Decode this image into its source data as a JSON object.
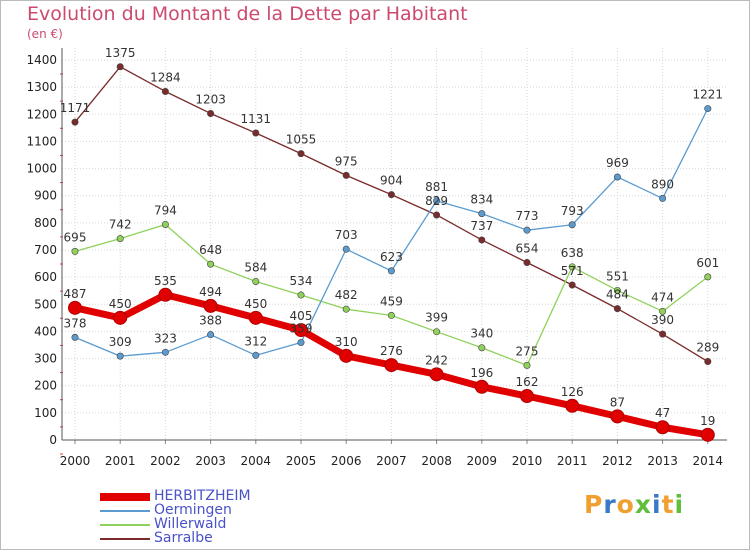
{
  "header": {
    "title": "Evolution du Montant de la Dette par Habitant",
    "subtitle": "(en €)"
  },
  "logo": {
    "letters": [
      "P",
      "r",
      "o",
      "x",
      "i",
      "t",
      "i"
    ],
    "colors": [
      "#f0a030",
      "#3a78c8",
      "#f0a030",
      "#5fbf3a",
      "#3a78c8",
      "#f0a030",
      "#5fbf3a"
    ]
  },
  "chart_data": {
    "type": "line",
    "title": "Evolution du Montant de la Dette par Habitant",
    "ylabel": "(en €)",
    "xlabel": "",
    "x": [
      "2000",
      "2001",
      "2002",
      "2003",
      "2004",
      "2005",
      "2006",
      "2007",
      "2008",
      "2009",
      "2010",
      "2011",
      "2012",
      "2013",
      "2014"
    ],
    "ylim": [
      0,
      1400
    ],
    "yticks": [
      0,
      100,
      200,
      300,
      400,
      500,
      600,
      700,
      800,
      900,
      1000,
      1100,
      1200,
      1300,
      1400
    ],
    "grid": true,
    "legend": "bottom-left",
    "series": [
      {
        "name": "HERBITZHEIM",
        "color": "#e00000",
        "values": [
          487,
          450,
          535,
          494,
          450,
          405,
          310,
          276,
          242,
          196,
          162,
          126,
          87,
          47,
          19
        ]
      },
      {
        "name": "Oermingen",
        "color": "#5b9bd0",
        "values": [
          378,
          309,
          323,
          388,
          312,
          359,
          703,
          623,
          881,
          834,
          773,
          793,
          969,
          890,
          1221
        ]
      },
      {
        "name": "Willerwald",
        "color": "#8fd15a",
        "values": [
          695,
          742,
          794,
          648,
          584,
          534,
          482,
          459,
          399,
          340,
          275,
          638,
          551,
          474,
          601
        ]
      },
      {
        "name": "Sarralbe",
        "color": "#7a2b2b",
        "values": [
          1171,
          1375,
          1284,
          1203,
          1131,
          1055,
          975,
          904,
          829,
          737,
          654,
          571,
          484,
          390,
          289
        ]
      }
    ]
  }
}
